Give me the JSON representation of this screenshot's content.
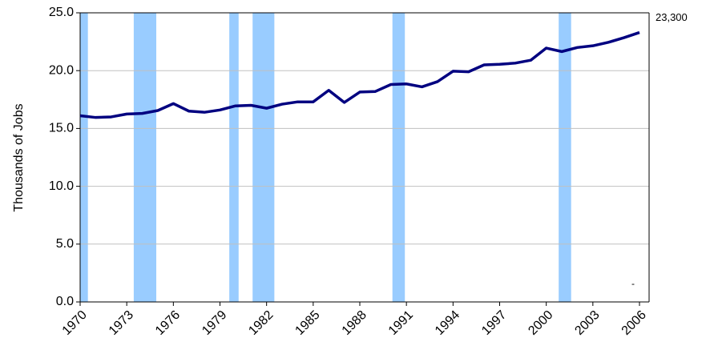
{
  "chart_data": {
    "type": "line",
    "y_label": "Thousands of Jobs",
    "x": [
      1970,
      1971,
      1972,
      1973,
      1974,
      1975,
      1976,
      1977,
      1978,
      1979,
      1980,
      1981,
      1982,
      1983,
      1984,
      1985,
      1986,
      1987,
      1988,
      1989,
      1990,
      1991,
      1992,
      1993,
      1994,
      1995,
      1996,
      1997,
      1998,
      1999,
      2000,
      2001,
      2002,
      2003,
      2004,
      2005,
      2006
    ],
    "series": [
      {
        "color": "#000080",
        "values": [
          16.1,
          15.95,
          16.0,
          16.25,
          16.3,
          16.55,
          17.15,
          16.5,
          16.4,
          16.6,
          16.95,
          17.0,
          16.75,
          17.1,
          17.3,
          17.3,
          18.3,
          17.25,
          18.15,
          18.2,
          18.8,
          18.85,
          18.6,
          19.05,
          19.95,
          19.9,
          20.5,
          20.55,
          20.65,
          20.9,
          21.95,
          21.65,
          22.0,
          22.15,
          22.45,
          22.85,
          23.3
        ],
        "value_labels": [
          null,
          null,
          null,
          null,
          null,
          null,
          null,
          null,
          null,
          null,
          null,
          null,
          null,
          null,
          null,
          null,
          null,
          null,
          null,
          null,
          null,
          null,
          null,
          null,
          null,
          null,
          null,
          null,
          null,
          null,
          null,
          null,
          null,
          null,
          null,
          null,
          "23,300"
        ]
      }
    ],
    "recessions": [
      [
        1970.0,
        1970.5
      ],
      [
        1973.45,
        1974.9
      ],
      [
        1979.6,
        1980.2
      ],
      [
        1981.1,
        1982.5
      ],
      [
        1990.1,
        1990.9
      ],
      [
        2000.8,
        2001.6
      ]
    ],
    "recession_color": "#99ccff",
    "annotation": "-",
    "xlim": [
      1970,
      2006
    ],
    "xticks": [
      1970,
      1973,
      1976,
      1979,
      1982,
      1985,
      1988,
      1991,
      1994,
      1997,
      2000,
      2003,
      2006
    ],
    "ylim": [
      0,
      25
    ],
    "yticks": [
      {
        "value": 0,
        "label": "0.0"
      },
      {
        "value": 5,
        "label": "5.0"
      },
      {
        "value": 10,
        "label": "10.0"
      },
      {
        "value": 15,
        "label": "15.0"
      },
      {
        "value": 20,
        "label": "20.0"
      },
      {
        "value": 25,
        "label": "25.0"
      }
    ],
    "grid": true
  }
}
